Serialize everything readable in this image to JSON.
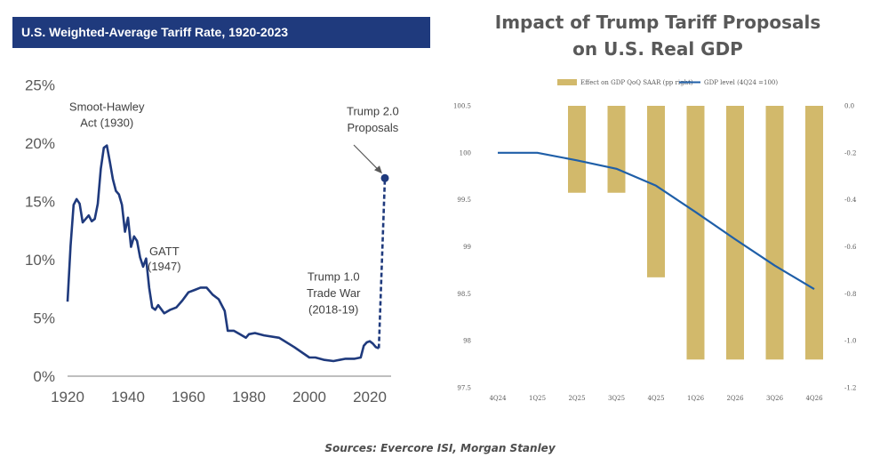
{
  "left_banner": "U.S. Weighted-Average Tariff Rate, 1920-2023",
  "right_title_line1": "Impact of Trump Tariff Proposals",
  "right_title_line2": "on U.S. Real GDP",
  "sources": "Sources: Evercore ISI, Morgan Stanley",
  "colors": {
    "banner": "#1f3a7d",
    "tariff_line": "#1f3a7d",
    "gdp_line": "#1f5fa8",
    "bars": "#d2b96b"
  },
  "chart_data": [
    {
      "type": "line",
      "title": "U.S. Weighted-Average Tariff Rate, 1920-2023",
      "xlim": [
        1920,
        2027
      ],
      "ylim": [
        0,
        25
      ],
      "x_ticks": [
        1920,
        1940,
        1960,
        1980,
        2000,
        2020
      ],
      "y_ticks": [
        "0%",
        "5%",
        "10%",
        "15%",
        "20%",
        "25%"
      ],
      "grid": false,
      "series": [
        {
          "x": [
            1920,
            1921,
            1922,
            1923,
            1924,
            1925,
            1926,
            1927,
            1928,
            1929,
            1930,
            1931,
            1932,
            1933,
            1934,
            1935,
            1936,
            1937,
            1938,
            1939,
            1940,
            1941,
            1942,
            1943,
            1944,
            1945,
            1946,
            1947,
            1948,
            1949,
            1950,
            1952,
            1954,
            1956,
            1958,
            1960,
            1962,
            1964,
            1966,
            1968,
            1970,
            1972,
            1973,
            1975,
            1977,
            1979,
            1980,
            1982,
            1985,
            1990,
            1995,
            2000,
            2002,
            2005,
            2008,
            2010,
            2012,
            2015,
            2017,
            2018,
            2019,
            2020,
            2021,
            2022,
            2023
          ],
          "y": [
            6.4,
            11.2,
            14.7,
            15.2,
            14.8,
            13.2,
            13.5,
            13.8,
            13.3,
            13.5,
            14.8,
            17.8,
            19.6,
            19.8,
            18.4,
            16.9,
            15.9,
            15.6,
            14.7,
            12.4,
            13.6,
            11.1,
            12.0,
            11.6,
            10.2,
            9.4,
            10.1,
            7.6,
            5.9,
            5.7,
            6.1,
            5.4,
            5.7,
            5.9,
            6.5,
            7.2,
            7.4,
            7.6,
            7.6,
            7.0,
            6.6,
            5.6,
            3.9,
            3.9,
            3.6,
            3.3,
            3.6,
            3.7,
            3.5,
            3.3,
            2.5,
            1.6,
            1.6,
            1.4,
            1.3,
            1.4,
            1.5,
            1.5,
            1.6,
            2.6,
            2.9,
            3.0,
            2.8,
            2.5,
            2.4
          ]
        },
        {
          "name": "Trump 2.0 Proposals",
          "style": "dashed",
          "x": [
            2023,
            2025
          ],
          "y": [
            2.4,
            17.0
          ]
        }
      ],
      "annotations": [
        {
          "text": "Smoot-Hawley",
          "x": 1933,
          "y": 22.8
        },
        {
          "text": "Act (1930)",
          "x": 1933,
          "y": 21.4
        },
        {
          "text": "GATT",
          "x": 1952,
          "y": 10.4
        },
        {
          "text": "(1947)",
          "x": 1952,
          "y": 9.1
        },
        {
          "text": "Trump 1.0",
          "x": 2008,
          "y": 8.2
        },
        {
          "text": "Trade War",
          "x": 2008,
          "y": 6.8
        },
        {
          "text": "(2018-19)",
          "x": 2008,
          "y": 5.4
        },
        {
          "text": "Trump 2.0",
          "x": 2021,
          "y": 22.4
        },
        {
          "text": "Proposals",
          "x": 2021,
          "y": 21.0
        }
      ]
    },
    {
      "type": "bar+line",
      "title": "Impact of Trump Tariff Proposals on U.S. Real GDP",
      "categories": [
        "4Q24",
        "1Q25",
        "2Q25",
        "3Q25",
        "4Q25",
        "1Q26",
        "2Q26",
        "3Q26",
        "4Q26"
      ],
      "legend_position": "top",
      "series": [
        {
          "name": "Effect on GDP QoQ SAAR (pp right)",
          "type": "bar",
          "axis": "right",
          "values": [
            0,
            0,
            -0.37,
            -0.37,
            -0.73,
            -1.08,
            -1.08,
            -1.08,
            -1.08
          ]
        },
        {
          "name": "GDP level  (4Q24 =100)",
          "type": "line",
          "axis": "left",
          "values": [
            100,
            100,
            99.92,
            99.83,
            99.65,
            99.37,
            99.08,
            98.8,
            98.55
          ]
        }
      ],
      "left_ylim": [
        97.5,
        100.5
      ],
      "left_ticks": [
        "97.5",
        "98",
        "98.5",
        "99",
        "99.5",
        "100",
        "100.5"
      ],
      "right_ylim": [
        -1.2,
        0.0
      ],
      "right_ticks": [
        "-1.2",
        "-1.0",
        "-0.8",
        "-0.6",
        "-0.4",
        "-0.2",
        "0.0"
      ],
      "grid": false
    }
  ]
}
